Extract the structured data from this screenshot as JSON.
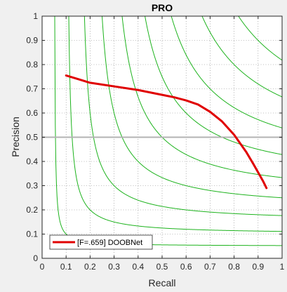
{
  "chart_data": {
    "type": "line",
    "title": "PRO",
    "xlabel": "Recall",
    "ylabel": "Precision",
    "xlim": [
      0,
      1
    ],
    "ylim": [
      0,
      1
    ],
    "xticks": [
      "0",
      "0.1",
      "0.2",
      "0.3",
      "0.4",
      "0.5",
      "0.6",
      "0.7",
      "0.8",
      "0.9",
      "1"
    ],
    "yticks": [
      "0",
      "0.1",
      "0.2",
      "0.3",
      "0.4",
      "0.5",
      "0.6",
      "0.7",
      "0.8",
      "0.9",
      "1"
    ],
    "grid": true,
    "legend_position": "bottom-left",
    "iso_f_levels": [
      0.1,
      0.2,
      0.3,
      0.4,
      0.5,
      0.6,
      0.7,
      0.8,
      0.9
    ],
    "reference_line_y": 0.5,
    "series": [
      {
        "name": "[F=.659] DOOBNet",
        "color": "#e00000",
        "x": [
          0.1,
          0.15,
          0.2,
          0.3,
          0.4,
          0.5,
          0.55,
          0.6,
          0.65,
          0.7,
          0.75,
          0.8,
          0.85,
          0.88,
          0.9,
          0.92,
          0.935
        ],
        "y": [
          0.755,
          0.74,
          0.725,
          0.71,
          0.695,
          0.675,
          0.665,
          0.652,
          0.635,
          0.605,
          0.565,
          0.51,
          0.44,
          0.39,
          0.355,
          0.32,
          0.29
        ]
      }
    ],
    "colors": {
      "iso_f": "#1db31d",
      "reference_line": "#b3b3b3",
      "grid": "#262626",
      "plot_bg": "#ffffff",
      "figure_bg": "#f0f0f0"
    }
  }
}
